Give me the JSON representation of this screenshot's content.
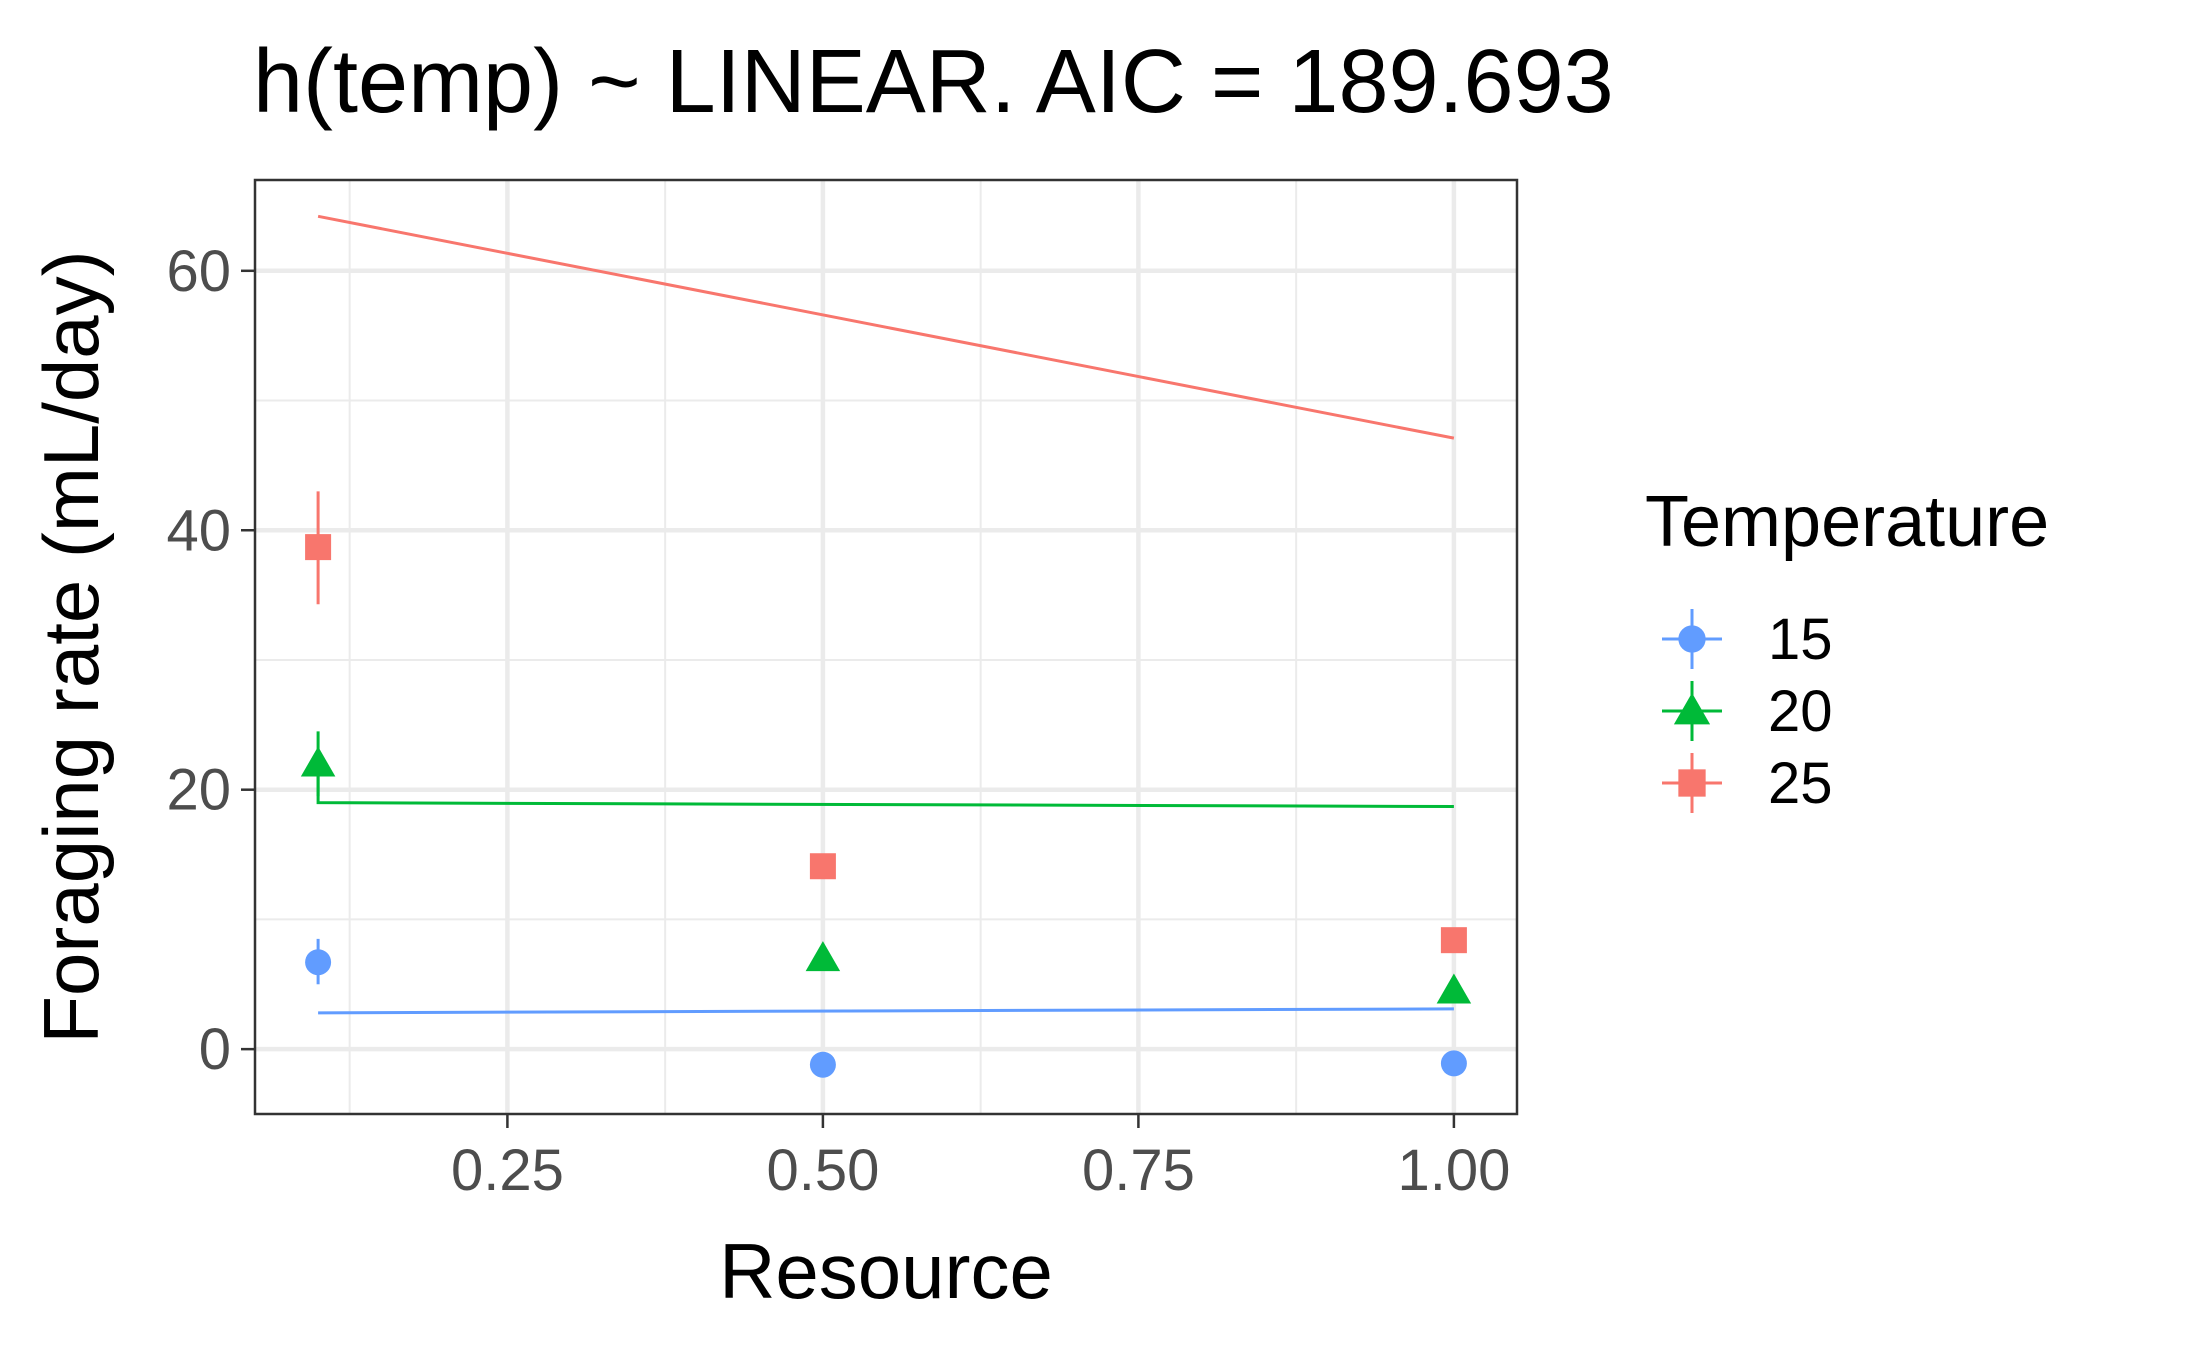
{
  "chart_data": {
    "type": "scatter",
    "title": "h(temp) ~ LINEAR. AIC = 189.693",
    "xlabel": "Resource",
    "ylabel": "Foraging rate (mL/day)",
    "xlim": [
      0.05,
      1.05
    ],
    "ylim": [
      -5,
      67
    ],
    "x_ticks": [
      0.25,
      0.5,
      0.75,
      1.0
    ],
    "x_tick_labels": [
      "0.25",
      "0.50",
      "0.75",
      "1.00"
    ],
    "y_ticks": [
      0,
      20,
      40,
      60
    ],
    "y_tick_labels": [
      "0",
      "20",
      "40",
      "60"
    ],
    "grid": true,
    "legend": {
      "title": "Temperature",
      "position": "right"
    },
    "series": [
      {
        "name": "15",
        "color": "#619cff",
        "shape": "circle",
        "points": [
          {
            "x": 0.1,
            "y": 6.7,
            "ymin": 5.0,
            "ymax": 8.5
          },
          {
            "x": 0.5,
            "y": -1.2
          },
          {
            "x": 1.0,
            "y": -1.1
          }
        ],
        "fit": [
          {
            "x": 0.1,
            "y": 2.8
          },
          {
            "x": 1.0,
            "y": 3.1
          }
        ]
      },
      {
        "name": "20",
        "color": "#00ba38",
        "shape": "triangle",
        "points": [
          {
            "x": 0.1,
            "y": 22.0,
            "ymin": 19.5,
            "ymax": 24.5
          },
          {
            "x": 0.5,
            "y": 7.0
          },
          {
            "x": 1.0,
            "y": 4.5
          }
        ],
        "fit": [
          {
            "x": 0.1,
            "y": 22.0
          },
          {
            "x": 0.1,
            "y": 19.0
          },
          {
            "x": 1.0,
            "y": 18.7
          }
        ]
      },
      {
        "name": "25",
        "color": "#f8766d",
        "shape": "square",
        "points": [
          {
            "x": 0.1,
            "y": 38.7,
            "ymin": 34.3,
            "ymax": 43.0
          },
          {
            "x": 0.5,
            "y": 14.1
          },
          {
            "x": 1.0,
            "y": 8.4
          }
        ],
        "fit": [
          {
            "x": 0.1,
            "y": 64.2
          },
          {
            "x": 1.0,
            "y": 47.1
          }
        ]
      }
    ]
  }
}
